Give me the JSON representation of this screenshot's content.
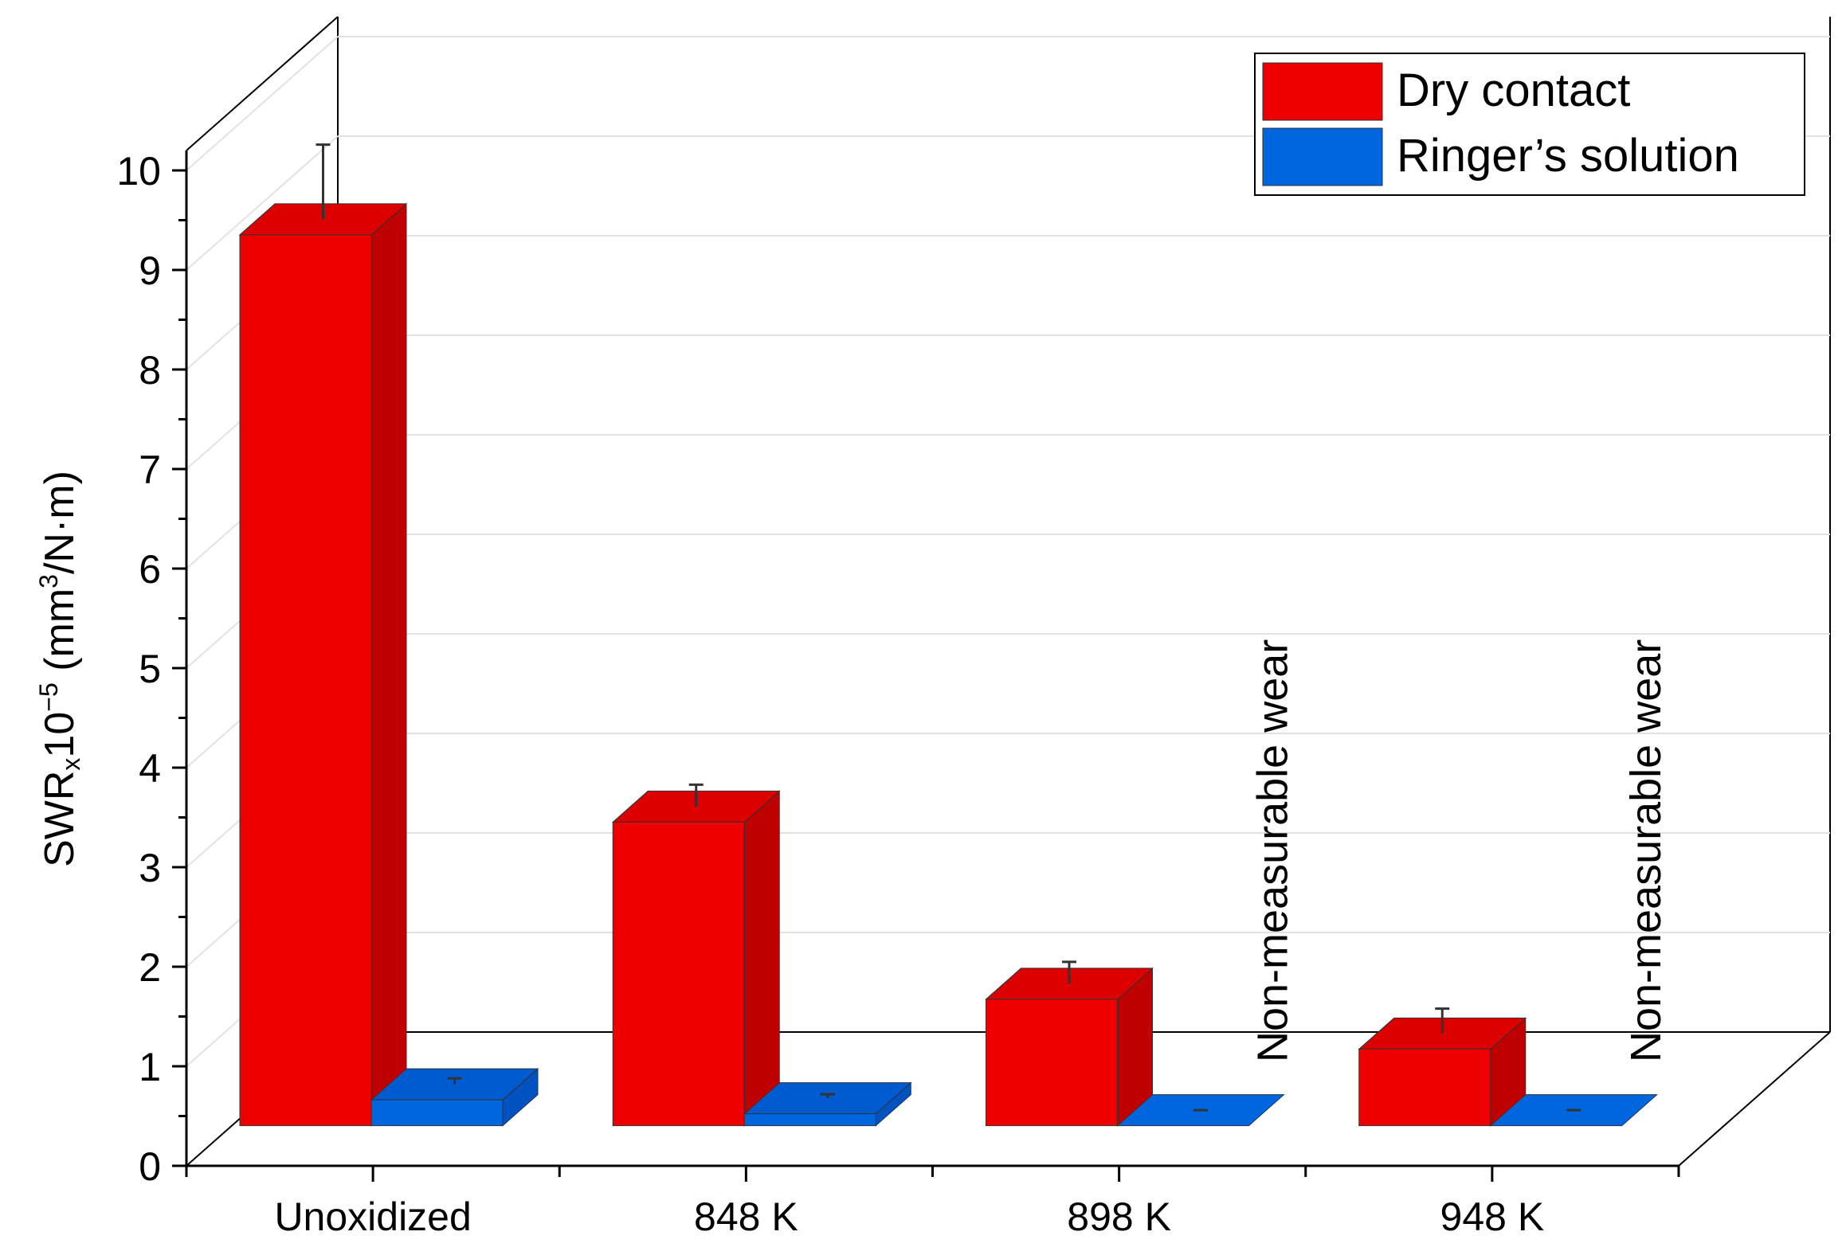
{
  "chart_data": {
    "type": "bar",
    "style": "3d-clustered",
    "categories": [
      "Unoxidized",
      "848 K",
      "898 K",
      "948 K"
    ],
    "series": [
      {
        "name": "Dry contact",
        "color": "#ee0000",
        "side_color": "#bf0000",
        "top_color": "#dd0000",
        "values": [
          8.95,
          3.05,
          1.27,
          0.77
        ],
        "errors": [
          0.75,
          0.22,
          0.22,
          0.25
        ]
      },
      {
        "name": "Ringer's solution",
        "color": "#0066dd",
        "side_color": "#0052c0",
        "top_color": "#005ad0",
        "values": [
          0.26,
          0.12,
          0.0,
          0.0
        ],
        "errors": [
          0.06,
          0.04,
          0.0,
          0.0
        ]
      }
    ],
    "annotations": [
      {
        "category": "898 K",
        "text": "Non-measurable wear"
      },
      {
        "category": "948 K",
        "text": "Non-measurable wear"
      }
    ],
    "ylabel": "SWRx10−5 (mm3/N·m)",
    "ylabel_parts": {
      "lead": "SWR",
      "sub": "x",
      "base": "10",
      "exp": "−5",
      "unit_open": " (mm",
      "unit_exp": "3",
      "unit_close": "/N·m)"
    },
    "yticks": [
      "0",
      "1",
      "2",
      "3",
      "4",
      "5",
      "6",
      "7",
      "8",
      "9",
      "10"
    ],
    "ylim": [
      0,
      10
    ],
    "xlabel": "",
    "legend": {
      "position": "top-right",
      "entries": [
        "Dry contact",
        "Ringer’s solution"
      ]
    },
    "grid": true
  }
}
